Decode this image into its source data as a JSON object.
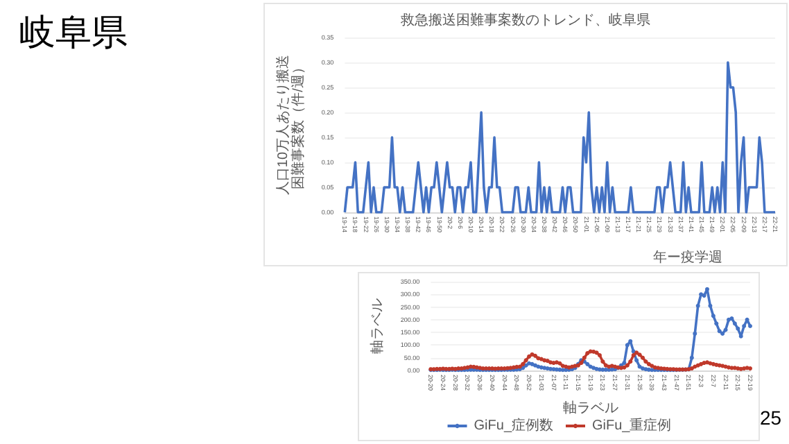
{
  "chart_data": [
    {
      "type": "line",
      "title": "救急搬送困難事案数のトレンド、岐阜県",
      "xlabel": "年ー疫学週",
      "ylabel": "人口10万人あたり搬送困難事案数（件/週）",
      "annotations": [
        "岐阜県"
      ],
      "categories": [
        "19-14",
        null,
        null,
        null,
        "19-18",
        null,
        null,
        null,
        "19-22",
        null,
        null,
        null,
        "19-26",
        null,
        null,
        null,
        "19-30",
        null,
        null,
        null,
        "19-34",
        null,
        null,
        null,
        "19-38",
        null,
        null,
        null,
        "19-42",
        null,
        null,
        null,
        "19-46",
        null,
        null,
        null,
        "19-50",
        null,
        null,
        null,
        "20-2",
        null,
        null,
        null,
        "20-6",
        null,
        null,
        null,
        "20-10",
        null,
        null,
        null,
        "20-14",
        null,
        null,
        null,
        "20-18",
        null,
        null,
        null,
        "20-22",
        null,
        null,
        null,
        "20-26",
        null,
        null,
        null,
        "20-30",
        null,
        null,
        null,
        "20-34",
        null,
        null,
        null,
        "20-38",
        null,
        null,
        null,
        "20-42",
        null,
        null,
        null,
        "20-46",
        null,
        null,
        null,
        "20-50",
        null,
        null,
        null,
        "21-01",
        null,
        null,
        null,
        "21-05",
        null,
        null,
        null,
        "21-09",
        null,
        null,
        null,
        "21-13",
        null,
        null,
        null,
        "21-17",
        null,
        null,
        null,
        "21-21",
        null,
        null,
        null,
        "21-25",
        null,
        null,
        null,
        "21-29",
        null,
        null,
        null,
        "21-33",
        null,
        null,
        null,
        "21-37",
        null,
        null,
        null,
        "21-41",
        null,
        null,
        null,
        "21-45",
        null,
        null,
        null,
        "21-49",
        null,
        null,
        null,
        "22-01",
        null,
        null,
        null,
        "22-05",
        null,
        null,
        null,
        "22-09",
        null,
        null,
        null,
        "22-13",
        null,
        null,
        null,
        "22-17",
        null,
        null,
        null,
        "22-21"
      ],
      "series": [
        {
          "color": "#4472c4",
          "values": [
            0,
            0.05,
            0.05,
            0.05,
            0.1,
            0,
            0,
            0,
            0.05,
            0.1,
            0,
            0.05,
            0,
            0,
            0,
            0.05,
            0.05,
            0.05,
            0.15,
            0.05,
            0.05,
            0,
            0.05,
            0,
            0,
            0,
            0,
            0.05,
            0.1,
            0.05,
            0,
            0.05,
            0,
            0.05,
            0.05,
            0.1,
            0.05,
            0,
            0.05,
            0.1,
            0.05,
            0.05,
            0,
            0.05,
            0.05,
            0,
            0.05,
            0.05,
            0.1,
            0,
            0,
            0.1,
            0.2,
            0.05,
            0,
            0.05,
            0.05,
            0.15,
            0.05,
            0.05,
            0,
            0,
            0,
            0,
            0,
            0.05,
            0.05,
            0,
            0,
            0,
            0.05,
            0,
            0,
            0,
            0.1,
            0,
            0.05,
            0,
            0.05,
            0,
            0,
            0,
            0,
            0.05,
            0,
            0.05,
            0.05,
            0,
            0,
            0,
            0,
            0.15,
            0.1,
            0.2,
            0.05,
            0,
            0.05,
            0,
            0.05,
            0,
            0.1,
            0,
            0.05,
            0,
            0,
            0,
            0,
            0,
            0,
            0.05,
            0,
            0,
            0,
            0,
            0,
            0,
            0,
            0,
            0,
            0.05,
            0.05,
            0,
            0.05,
            0.05,
            0.1,
            0.05,
            0,
            0,
            0,
            0.1,
            0,
            0.05,
            0,
            0,
            0,
            0,
            0.1,
            0,
            0,
            0,
            0.05,
            0,
            0.05,
            0,
            0.1,
            0,
            0.3,
            0.25,
            0.25,
            0.2,
            0,
            0.1,
            0.15,
            0,
            0.05,
            0.05,
            0.05,
            0.05,
            0.15,
            0.1,
            0,
            0,
            0,
            0,
            0
          ]
        }
      ],
      "ylim": [
        0,
        0.35
      ],
      "yticks": [
        {
          "value": 0,
          "label": "0.00"
        },
        {
          "value": 0.05,
          "label": "0.05"
        },
        {
          "value": 0.1,
          "label": "0.10"
        },
        {
          "value": 0.15,
          "label": "0.15"
        },
        {
          "value": 0.2,
          "label": "0.20"
        },
        {
          "value": 0.25,
          "label": "0.25"
        },
        {
          "value": 0.3,
          "label": "0.30"
        },
        {
          "value": 0.35,
          "label": "0.35"
        }
      ],
      "grid": "y",
      "marker": "none"
    },
    {
      "type": "line",
      "xlabel": "軸ラベル",
      "ylabel": "軸ラベル",
      "annotations": [
        "25"
      ],
      "categories": [
        "20-20",
        null,
        null,
        null,
        "20-24",
        null,
        null,
        null,
        "20-28",
        null,
        null,
        null,
        "20-32",
        null,
        null,
        null,
        "20-36",
        null,
        null,
        null,
        "20-40",
        null,
        null,
        null,
        "20-44",
        null,
        null,
        null,
        "20-48",
        null,
        null,
        null,
        "20-52",
        null,
        null,
        null,
        "21-03",
        null,
        null,
        null,
        "21-07",
        null,
        null,
        null,
        "21-11",
        null,
        null,
        null,
        "21-15",
        null,
        null,
        null,
        "21-19",
        null,
        null,
        null,
        "21-23",
        null,
        null,
        null,
        "21-27",
        null,
        null,
        null,
        "21-31",
        null,
        null,
        null,
        "21-35",
        null,
        null,
        null,
        "21-39",
        null,
        null,
        null,
        "21-43",
        null,
        null,
        null,
        "21-47",
        null,
        null,
        null,
        "21-51",
        null,
        null,
        null,
        "22-3",
        null,
        null,
        null,
        "22-7",
        null,
        null,
        null,
        "22-11",
        null,
        null,
        null,
        "22-15",
        null,
        null,
        null,
        "22-19"
      ],
      "series": [
        {
          "name": "GiFu_症例数",
          "color": "#4472c4",
          "values": [
            2,
            2,
            2,
            3,
            2,
            2,
            2,
            3,
            2,
            2,
            2,
            2,
            3,
            3,
            3,
            3,
            2,
            2,
            2,
            2,
            2,
            2,
            2,
            2,
            3,
            3,
            3,
            3,
            4,
            5,
            10,
            20,
            28,
            25,
            20,
            15,
            12,
            10,
            8,
            6,
            5,
            4,
            3,
            2,
            2,
            3,
            5,
            10,
            25,
            40,
            35,
            25,
            15,
            10,
            6,
            4,
            3,
            3,
            3,
            4,
            5,
            10,
            20,
            30,
            100,
            115,
            75,
            40,
            15,
            8,
            5,
            3,
            2,
            2,
            2,
            2,
            2,
            2,
            2,
            2,
            2,
            3,
            3,
            4,
            5,
            50,
            145,
            255,
            300,
            295,
            320,
            255,
            215,
            185,
            155,
            145,
            160,
            200,
            205,
            185,
            165,
            135,
            175,
            200,
            175
          ]
        },
        {
          "name": "GiFu_重症例",
          "color": "#c0392b",
          "values": [
            5,
            5,
            6,
            6,
            7,
            6,
            6,
            7,
            6,
            8,
            8,
            10,
            12,
            15,
            14,
            12,
            10,
            8,
            8,
            8,
            8,
            7,
            8,
            8,
            8,
            9,
            10,
            12,
            14,
            15,
            25,
            40,
            55,
            63,
            58,
            48,
            45,
            40,
            38,
            32,
            30,
            32,
            28,
            18,
            15,
            12,
            15,
            18,
            20,
            30,
            50,
            68,
            75,
            74,
            70,
            60,
            35,
            20,
            15,
            18,
            15,
            12,
            10,
            12,
            20,
            35,
            60,
            70,
            62,
            50,
            35,
            25,
            18,
            12,
            10,
            8,
            7,
            6,
            5,
            5,
            4,
            4,
            4,
            4,
            5,
            8,
            15,
            20,
            25,
            30,
            32,
            28,
            25,
            22,
            20,
            18,
            15,
            12,
            10,
            10,
            8,
            6,
            8,
            10,
            8
          ]
        }
      ],
      "ylim": [
        0,
        350
      ],
      "yticks": [
        {
          "value": 0,
          "label": "0.00"
        },
        {
          "value": 50,
          "label": "50.00"
        },
        {
          "value": 100,
          "label": "100.00"
        },
        {
          "value": 150,
          "label": "150.00"
        },
        {
          "value": 200,
          "label": "200.00"
        },
        {
          "value": 250,
          "label": "250.00"
        },
        {
          "value": 300,
          "label": "300.00"
        },
        {
          "value": 350,
          "label": "350.00"
        }
      ],
      "grid": "y",
      "marker": "circle",
      "legend": "bottom"
    }
  ]
}
